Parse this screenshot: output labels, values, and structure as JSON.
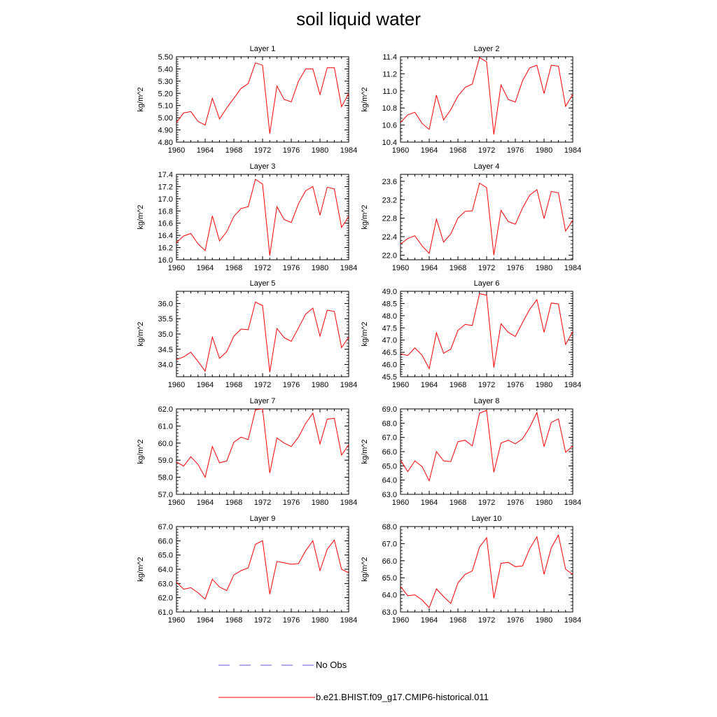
{
  "title": "soil liquid water",
  "legend": [
    {
      "label": "No Obs",
      "color": "#5a5ad6",
      "style": "dashed"
    },
    {
      "label": "b.e21.BHIST.f09_g17.CMIP6-historical.011",
      "color": "#ff0000",
      "style": "solid"
    }
  ],
  "chart_data": [
    {
      "type": "line",
      "title": "Layer 1",
      "ylabel": "kg/m^2",
      "xlim": [
        1960,
        1984
      ],
      "x_ticks": [
        "1960",
        "1964",
        "1968",
        "1972",
        "1976",
        "1980",
        "1984"
      ],
      "ylim": [
        4.8,
        5.5
      ],
      "y_ticks": [
        "4.80",
        "4.90",
        "5.00",
        "5.10",
        "5.20",
        "5.30",
        "5.40",
        "5.50"
      ],
      "x": [
        1960,
        1961,
        1962,
        1963,
        1964,
        1965,
        1966,
        1967,
        1968,
        1969,
        1970,
        1971,
        1972,
        1973,
        1974,
        1975,
        1976,
        1977,
        1978,
        1979,
        1980,
        1981,
        1982,
        1983,
        1984
      ],
      "values": [
        4.96,
        5.04,
        5.05,
        4.97,
        4.94,
        5.16,
        4.99,
        5.08,
        5.16,
        5.24,
        5.28,
        5.45,
        5.43,
        4.87,
        5.26,
        5.15,
        5.13,
        5.3,
        5.4,
        5.4,
        5.19,
        5.41,
        5.41,
        5.09,
        5.2
      ]
    },
    {
      "type": "line",
      "title": "Layer 2",
      "ylabel": "kg/m^2",
      "xlim": [
        1960,
        1984
      ],
      "x_ticks": [
        "1960",
        "1964",
        "1968",
        "1972",
        "1976",
        "1980",
        "1984"
      ],
      "ylim": [
        10.4,
        11.4
      ],
      "y_ticks": [
        "10.4",
        "10.6",
        "10.8",
        "11.0",
        "11.2",
        "11.4"
      ],
      "x": [
        1960,
        1961,
        1962,
        1963,
        1964,
        1965,
        1966,
        1967,
        1968,
        1969,
        1970,
        1971,
        1972,
        1973,
        1974,
        1975,
        1976,
        1977,
        1978,
        1979,
        1980,
        1981,
        1982,
        1983,
        1984
      ],
      "values": [
        10.63,
        10.72,
        10.75,
        10.62,
        10.55,
        10.95,
        10.66,
        10.78,
        10.94,
        11.04,
        11.08,
        11.39,
        11.34,
        10.49,
        11.07,
        10.9,
        10.87,
        11.12,
        11.27,
        11.3,
        10.97,
        11.3,
        11.29,
        10.82,
        10.96
      ]
    },
    {
      "type": "line",
      "title": "Layer 3",
      "ylabel": "kg/m^2",
      "xlim": [
        1960,
        1984
      ],
      "x_ticks": [
        "1960",
        "1964",
        "1968",
        "1972",
        "1976",
        "1980",
        "1984"
      ],
      "ylim": [
        16.0,
        17.4
      ],
      "y_ticks": [
        "16.0",
        "16.2",
        "16.4",
        "16.6",
        "16.8",
        "17.0",
        "17.2",
        "17.4"
      ],
      "x": [
        1960,
        1961,
        1962,
        1963,
        1964,
        1965,
        1966,
        1967,
        1968,
        1969,
        1970,
        1971,
        1972,
        1973,
        1974,
        1975,
        1976,
        1977,
        1978,
        1979,
        1980,
        1981,
        1982,
        1983,
        1984
      ],
      "values": [
        16.28,
        16.39,
        16.43,
        16.26,
        16.15,
        16.72,
        16.31,
        16.46,
        16.71,
        16.84,
        16.87,
        17.32,
        17.24,
        16.07,
        16.87,
        16.66,
        16.61,
        16.92,
        17.13,
        17.2,
        16.73,
        17.19,
        17.16,
        16.53,
        16.71
      ]
    },
    {
      "type": "line",
      "title": "Layer 4",
      "ylabel": "kg/m^2",
      "xlim": [
        1960,
        1984
      ],
      "x_ticks": [
        "1960",
        "1964",
        "1968",
        "1972",
        "1976",
        "1980",
        "1984"
      ],
      "ylim": [
        21.9,
        23.75
      ],
      "y_ticks": [
        "22.0",
        "22.4",
        "22.8",
        "23.2",
        "23.6"
      ],
      "x": [
        1960,
        1961,
        1962,
        1963,
        1964,
        1965,
        1966,
        1967,
        1968,
        1969,
        1970,
        1971,
        1972,
        1973,
        1974,
        1975,
        1976,
        1977,
        1978,
        1979,
        1980,
        1981,
        1982,
        1983,
        1984
      ],
      "values": [
        22.24,
        22.36,
        22.42,
        22.2,
        22.04,
        22.78,
        22.28,
        22.46,
        22.8,
        22.95,
        22.96,
        23.56,
        23.46,
        22.0,
        22.97,
        22.73,
        22.67,
        23.02,
        23.3,
        23.42,
        22.79,
        23.38,
        23.35,
        22.52,
        22.76
      ]
    },
    {
      "type": "line",
      "title": "Layer 5",
      "ylabel": "kg/m^2",
      "xlim": [
        1960,
        1984
      ],
      "x_ticks": [
        "1960",
        "1964",
        "1968",
        "1972",
        "1976",
        "1980",
        "1984"
      ],
      "ylim": [
        33.6,
        36.4
      ],
      "y_ticks": [
        "34.0",
        "34.5",
        "35.0",
        "35.5",
        "36.0"
      ],
      "x": [
        1960,
        1961,
        1962,
        1963,
        1964,
        1965,
        1966,
        1967,
        1968,
        1969,
        1970,
        1971,
        1972,
        1973,
        1974,
        1975,
        1976,
        1977,
        1978,
        1979,
        1980,
        1981,
        1982,
        1983,
        1984
      ],
      "values": [
        34.16,
        34.25,
        34.4,
        34.1,
        33.78,
        34.9,
        34.2,
        34.42,
        34.93,
        35.16,
        35.14,
        36.05,
        35.93,
        33.75,
        35.18,
        34.88,
        34.76,
        35.2,
        35.65,
        35.85,
        34.93,
        35.78,
        35.74,
        34.55,
        34.9
      ]
    },
    {
      "type": "line",
      "title": "Layer 6",
      "ylabel": "kg/m^2",
      "xlim": [
        1960,
        1984
      ],
      "x_ticks": [
        "1960",
        "1964",
        "1968",
        "1972",
        "1976",
        "1980",
        "1984"
      ],
      "ylim": [
        45.5,
        49.0
      ],
      "y_ticks": [
        "45.5",
        "46.0",
        "46.5",
        "47.0",
        "47.5",
        "48.0",
        "48.5",
        "49.0"
      ],
      "x": [
        1960,
        1961,
        1962,
        1963,
        1964,
        1965,
        1966,
        1967,
        1968,
        1969,
        1970,
        1971,
        1972,
        1973,
        1974,
        1975,
        1976,
        1977,
        1978,
        1979,
        1980,
        1981,
        1982,
        1983,
        1984
      ],
      "values": [
        46.44,
        46.37,
        46.68,
        46.38,
        45.83,
        47.3,
        46.46,
        46.63,
        47.4,
        47.64,
        47.6,
        48.9,
        48.84,
        45.88,
        47.67,
        47.32,
        47.15,
        47.72,
        48.26,
        48.66,
        47.32,
        48.52,
        48.48,
        46.82,
        47.35
      ]
    },
    {
      "type": "line",
      "title": "Layer 7",
      "ylabel": "kg/m^2",
      "xlim": [
        1960,
        1984
      ],
      "x_ticks": [
        "1960",
        "1964",
        "1968",
        "1972",
        "1976",
        "1980",
        "1984"
      ],
      "ylim": [
        57.0,
        62.0
      ],
      "y_ticks": [
        "57.0",
        "58.0",
        "59.0",
        "60.0",
        "61.0",
        "62.0"
      ],
      "x": [
        1960,
        1961,
        1962,
        1963,
        1964,
        1965,
        1966,
        1967,
        1968,
        1969,
        1970,
        1971,
        1972,
        1973,
        1974,
        1975,
        1976,
        1977,
        1978,
        1979,
        1980,
        1981,
        1982,
        1983,
        1984
      ],
      "values": [
        58.9,
        58.65,
        59.2,
        58.75,
        58.0,
        59.8,
        58.85,
        58.95,
        60.05,
        60.35,
        60.2,
        61.95,
        62.0,
        58.25,
        60.3,
        60.0,
        59.8,
        60.35,
        61.15,
        61.75,
        59.95,
        61.4,
        61.45,
        59.3,
        59.9
      ]
    },
    {
      "type": "line",
      "title": "Layer 8",
      "ylabel": "kg/m^2",
      "xlim": [
        1960,
        1984
      ],
      "x_ticks": [
        "1960",
        "1964",
        "1968",
        "1972",
        "1976",
        "1980",
        "1984"
      ],
      "ylim": [
        63.0,
        69.0
      ],
      "y_ticks": [
        "63.0",
        "64.0",
        "65.0",
        "66.0",
        "67.0",
        "68.0",
        "69.0"
      ],
      "x": [
        1960,
        1961,
        1962,
        1963,
        1964,
        1965,
        1966,
        1967,
        1968,
        1969,
        1970,
        1971,
        1972,
        1973,
        1974,
        1975,
        1976,
        1977,
        1978,
        1979,
        1980,
        1981,
        1982,
        1983,
        1984
      ],
      "values": [
        65.4,
        64.6,
        65.35,
        64.95,
        63.95,
        66.0,
        65.35,
        65.3,
        66.7,
        66.8,
        66.4,
        68.7,
        68.9,
        64.55,
        66.6,
        66.8,
        66.55,
        66.9,
        67.7,
        68.75,
        66.35,
        68.05,
        68.3,
        65.95,
        66.4
      ]
    },
    {
      "type": "line",
      "title": "Layer 9",
      "ylabel": "kg/m^2",
      "xlim": [
        1960,
        1984
      ],
      "x_ticks": [
        "1960",
        "1964",
        "1968",
        "1972",
        "1976",
        "1980",
        "1984"
      ],
      "ylim": [
        61.0,
        67.0
      ],
      "y_ticks": [
        "61.0",
        "62.0",
        "63.0",
        "64.0",
        "65.0",
        "66.0",
        "67.0"
      ],
      "x": [
        1960,
        1961,
        1962,
        1963,
        1964,
        1965,
        1966,
        1967,
        1968,
        1969,
        1970,
        1971,
        1972,
        1973,
        1974,
        1975,
        1976,
        1977,
        1978,
        1979,
        1980,
        1981,
        1982,
        1983,
        1984
      ],
      "values": [
        63.1,
        62.6,
        62.7,
        62.35,
        61.9,
        63.3,
        62.75,
        62.5,
        63.6,
        63.9,
        64.1,
        65.75,
        66.0,
        62.25,
        64.55,
        64.45,
        64.35,
        64.4,
        65.3,
        66.0,
        63.9,
        65.4,
        66.05,
        64.0,
        63.75
      ]
    },
    {
      "type": "line",
      "title": "Layer 10",
      "ylabel": "kg/m^2",
      "xlim": [
        1960,
        1984
      ],
      "x_ticks": [
        "1960",
        "1964",
        "1968",
        "1972",
        "1976",
        "1980",
        "1984"
      ],
      "ylim": [
        63.0,
        68.0
      ],
      "y_ticks": [
        "63.0",
        "64.0",
        "65.0",
        "66.0",
        "67.0",
        "68.0"
      ],
      "x": [
        1960,
        1961,
        1962,
        1963,
        1964,
        1965,
        1966,
        1967,
        1968,
        1969,
        1970,
        1971,
        1972,
        1973,
        1974,
        1975,
        1976,
        1977,
        1978,
        1979,
        1980,
        1981,
        1982,
        1983,
        1984
      ],
      "values": [
        64.5,
        63.95,
        64.0,
        63.7,
        63.25,
        64.35,
        63.9,
        63.5,
        64.7,
        65.2,
        65.4,
        66.8,
        67.35,
        63.8,
        65.85,
        65.9,
        65.65,
        65.7,
        66.7,
        67.4,
        65.2,
        66.75,
        67.5,
        65.5,
        65.2
      ]
    }
  ]
}
